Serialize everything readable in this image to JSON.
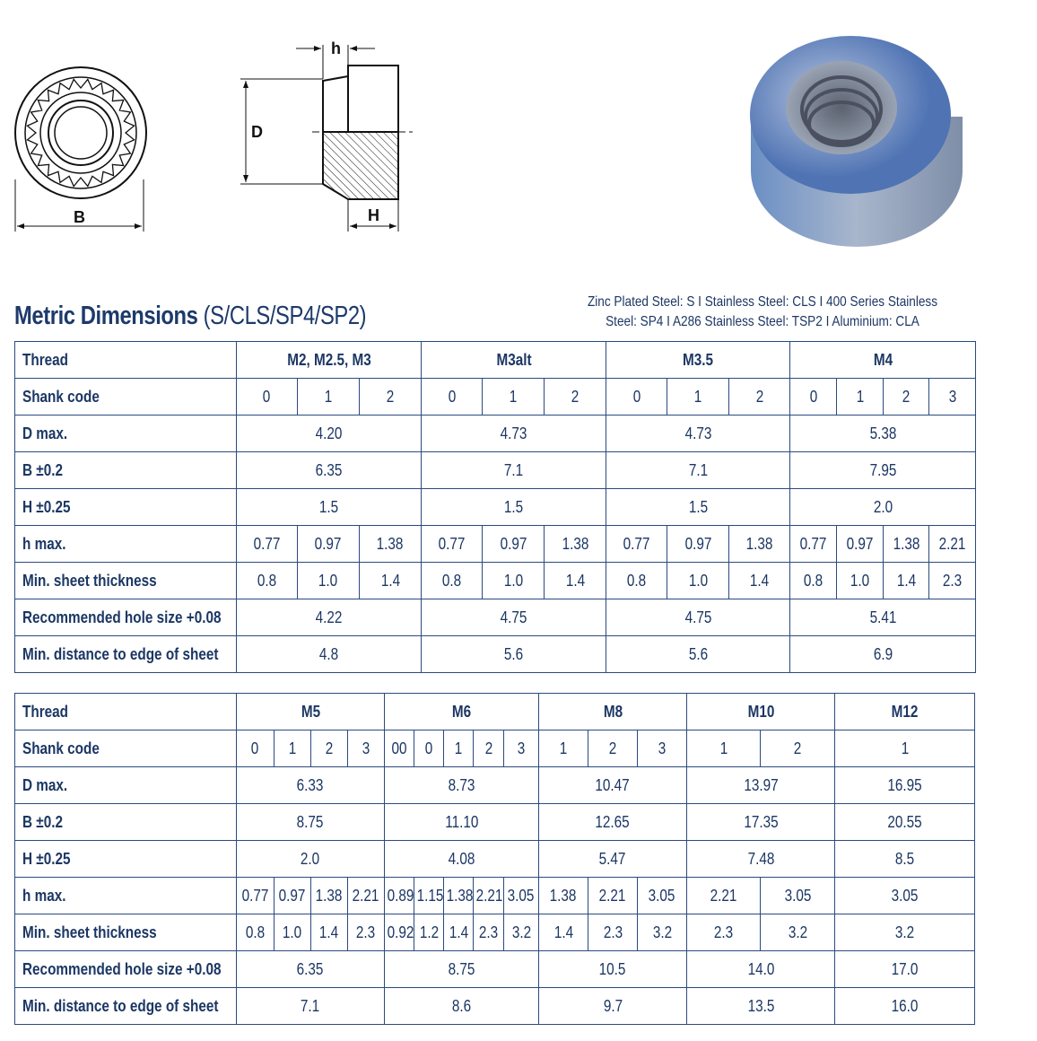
{
  "drawing": {
    "labels": {
      "B": "B",
      "D": "D",
      "h": "h",
      "H": "H"
    }
  },
  "header": {
    "title": "Metric Dimensions",
    "subtitle": "(S/CLS/SP4/SP2)",
    "materials_line1": "Zinc Plated Steel: S I Stainless Steel: CLS I 400 Series Stainless",
    "materials_line2": "Steel: SP4 I A286 Stainless Steel: TSP2 I Aluminium: CLA"
  },
  "colors": {
    "text": "#1c3764",
    "border": "#2b4a80"
  },
  "table1": {
    "rows": [
      {
        "label": "Thread",
        "header": true,
        "cells": [
          {
            "v": "M2, M2.5, M3",
            "span": 3
          },
          {
            "v": "M3alt",
            "span": 3
          },
          {
            "v": "M3.5",
            "span": 3
          },
          {
            "v": "M4",
            "span": 4
          }
        ]
      },
      {
        "label": "Shank code",
        "cells": [
          {
            "v": "0"
          },
          {
            "v": "1"
          },
          {
            "v": "2"
          },
          {
            "v": "0"
          },
          {
            "v": "1"
          },
          {
            "v": "2"
          },
          {
            "v": "0"
          },
          {
            "v": "1"
          },
          {
            "v": "2"
          },
          {
            "v": "0"
          },
          {
            "v": "1"
          },
          {
            "v": "2"
          },
          {
            "v": "3"
          }
        ]
      },
      {
        "label": "D max.",
        "cells": [
          {
            "v": "4.20",
            "span": 3
          },
          {
            "v": "4.73",
            "span": 3
          },
          {
            "v": "4.73",
            "span": 3
          },
          {
            "v": "5.38",
            "span": 4
          }
        ]
      },
      {
        "label": "B ±0.2",
        "cells": [
          {
            "v": "6.35",
            "span": 3
          },
          {
            "v": "7.1",
            "span": 3
          },
          {
            "v": "7.1",
            "span": 3
          },
          {
            "v": "7.95",
            "span": 4
          }
        ]
      },
      {
        "label": "H ±0.25",
        "cells": [
          {
            "v": "1.5",
            "span": 3
          },
          {
            "v": "1.5",
            "span": 3
          },
          {
            "v": "1.5",
            "span": 3
          },
          {
            "v": "2.0",
            "span": 4
          }
        ]
      },
      {
        "label": "h max.",
        "cells": [
          {
            "v": "0.77"
          },
          {
            "v": "0.97"
          },
          {
            "v": "1.38"
          },
          {
            "v": "0.77"
          },
          {
            "v": "0.97"
          },
          {
            "v": "1.38"
          },
          {
            "v": "0.77"
          },
          {
            "v": "0.97"
          },
          {
            "v": "1.38"
          },
          {
            "v": "0.77"
          },
          {
            "v": "0.97"
          },
          {
            "v": "1.38"
          },
          {
            "v": "2.21"
          }
        ]
      },
      {
        "label": "Min. sheet thickness",
        "cells": [
          {
            "v": "0.8"
          },
          {
            "v": "1.0"
          },
          {
            "v": "1.4"
          },
          {
            "v": "0.8"
          },
          {
            "v": "1.0"
          },
          {
            "v": "1.4"
          },
          {
            "v": "0.8"
          },
          {
            "v": "1.0"
          },
          {
            "v": "1.4"
          },
          {
            "v": "0.8"
          },
          {
            "v": "1.0"
          },
          {
            "v": "1.4"
          },
          {
            "v": "2.3"
          }
        ]
      },
      {
        "label": "Recommended hole size +0.08",
        "cells": [
          {
            "v": "4.22",
            "span": 3
          },
          {
            "v": "4.75",
            "span": 3
          },
          {
            "v": "4.75",
            "span": 3
          },
          {
            "v": "5.41",
            "span": 4
          }
        ]
      },
      {
        "label": "Min. distance to edge of sheet",
        "cells": [
          {
            "v": "4.8",
            "span": 3
          },
          {
            "v": "5.6",
            "span": 3
          },
          {
            "v": "5.6",
            "span": 3
          },
          {
            "v": "6.9",
            "span": 4
          }
        ]
      }
    ]
  },
  "table2": {
    "rows": [
      {
        "label": "Thread",
        "header": true,
        "cells": [
          {
            "v": "M5",
            "span": 4
          },
          {
            "v": "M6",
            "span": 5
          },
          {
            "v": "M8",
            "span": 3
          },
          {
            "v": "M10",
            "span": 2
          },
          {
            "v": "M12",
            "span": 1
          }
        ]
      },
      {
        "label": "Shank code",
        "cells": [
          {
            "v": "0"
          },
          {
            "v": "1"
          },
          {
            "v": "2"
          },
          {
            "v": "3"
          },
          {
            "v": "00"
          },
          {
            "v": "0"
          },
          {
            "v": "1"
          },
          {
            "v": "2"
          },
          {
            "v": "3"
          },
          {
            "v": "1"
          },
          {
            "v": "2"
          },
          {
            "v": "3"
          },
          {
            "v": "1"
          },
          {
            "v": "2"
          },
          {
            "v": "1"
          }
        ]
      },
      {
        "label": "D max.",
        "cells": [
          {
            "v": "6.33",
            "span": 4
          },
          {
            "v": "8.73",
            "span": 5
          },
          {
            "v": "10.47",
            "span": 3
          },
          {
            "v": "13.97",
            "span": 2
          },
          {
            "v": "16.95",
            "span": 1
          }
        ]
      },
      {
        "label": "B ±0.2",
        "cells": [
          {
            "v": "8.75",
            "span": 4
          },
          {
            "v": "11.10",
            "span": 5
          },
          {
            "v": "12.65",
            "span": 3
          },
          {
            "v": "17.35",
            "span": 2
          },
          {
            "v": "20.55",
            "span": 1
          }
        ]
      },
      {
        "label": "H ±0.25",
        "cells": [
          {
            "v": "2.0",
            "span": 4
          },
          {
            "v": "4.08",
            "span": 5
          },
          {
            "v": "5.47",
            "span": 3
          },
          {
            "v": "7.48",
            "span": 2
          },
          {
            "v": "8.5",
            "span": 1
          }
        ]
      },
      {
        "label": "h max.",
        "cells": [
          {
            "v": "0.77"
          },
          {
            "v": "0.97"
          },
          {
            "v": "1.38"
          },
          {
            "v": "2.21"
          },
          {
            "v": "0.89"
          },
          {
            "v": "1.15"
          },
          {
            "v": "1.38"
          },
          {
            "v": "2.21"
          },
          {
            "v": "3.05"
          },
          {
            "v": "1.38"
          },
          {
            "v": "2.21"
          },
          {
            "v": "3.05"
          },
          {
            "v": "2.21"
          },
          {
            "v": "3.05"
          },
          {
            "v": "3.05"
          }
        ]
      },
      {
        "label": "Min. sheet thickness",
        "cells": [
          {
            "v": "0.8"
          },
          {
            "v": "1.0"
          },
          {
            "v": "1.4"
          },
          {
            "v": "2.3"
          },
          {
            "v": "0.92"
          },
          {
            "v": "1.2"
          },
          {
            "v": "1.4"
          },
          {
            "v": "2.3"
          },
          {
            "v": "3.2"
          },
          {
            "v": "1.4"
          },
          {
            "v": "2.3"
          },
          {
            "v": "3.2"
          },
          {
            "v": "2.3"
          },
          {
            "v": "3.2"
          },
          {
            "v": "3.2"
          }
        ]
      },
      {
        "label": "Recommended hole size +0.08",
        "cells": [
          {
            "v": "6.35",
            "span": 4
          },
          {
            "v": "8.75",
            "span": 5
          },
          {
            "v": "10.5",
            "span": 3
          },
          {
            "v": "14.0",
            "span": 2
          },
          {
            "v": "17.0",
            "span": 1
          }
        ]
      },
      {
        "label": "Min. distance to edge of sheet",
        "cells": [
          {
            "v": "7.1",
            "span": 4
          },
          {
            "v": "8.6",
            "span": 5
          },
          {
            "v": "9.7",
            "span": 3
          },
          {
            "v": "13.5",
            "span": 2
          },
          {
            "v": "16.0",
            "span": 1
          }
        ]
      }
    ]
  }
}
